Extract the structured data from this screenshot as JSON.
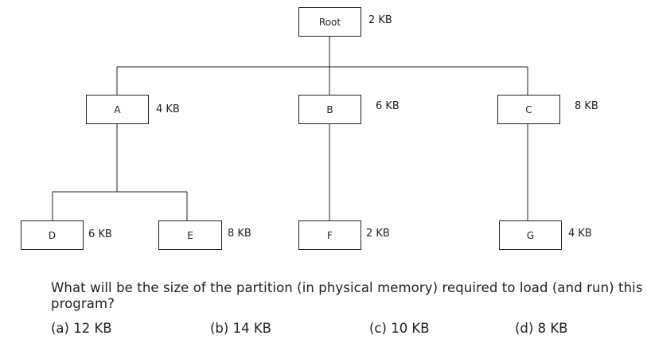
{
  "tree": {
    "nodes": {
      "root": {
        "label": "Root",
        "size": "2 KB"
      },
      "a": {
        "label": "A",
        "size": "4 KB"
      },
      "b": {
        "label": "B",
        "size": "6 KB"
      },
      "c": {
        "label": "C",
        "size": "8 KB"
      },
      "d": {
        "label": "D",
        "size": "6 KB"
      },
      "e": {
        "label": "E",
        "size": "8 KB"
      },
      "f": {
        "label": "F",
        "size": "2 KB"
      },
      "g": {
        "label": "G",
        "size": "4 KB"
      }
    },
    "edges": [
      [
        "root",
        "a"
      ],
      [
        "root",
        "b"
      ],
      [
        "root",
        "c"
      ],
      [
        "a",
        "d"
      ],
      [
        "a",
        "e"
      ],
      [
        "b",
        "f"
      ],
      [
        "c",
        "g"
      ]
    ]
  },
  "question": {
    "text": "What will be the size of the partition (in physical memory) required to load (and run) this program?",
    "options": [
      {
        "label": "(a)  12 KB"
      },
      {
        "label": "(b)  14 KB"
      },
      {
        "label": "(c)  10 KB"
      },
      {
        "label": "(d) 8 KB"
      }
    ]
  },
  "colors": {
    "line": "#222222",
    "text": "#222222",
    "background": "#ffffff"
  }
}
